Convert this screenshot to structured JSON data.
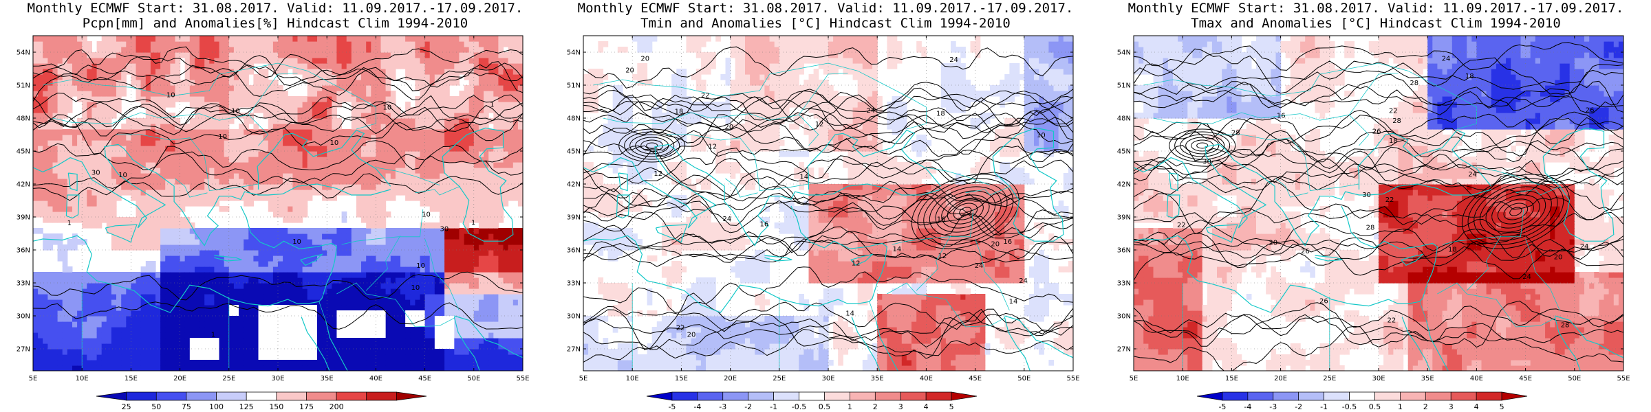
{
  "panels": [
    {
      "title_line1": "Monthly ECMWF Start: 31.08.2017. Valid: 11.09.2017.-17.09.2017.",
      "title_line2": "Pcpn[mm] and Anomalies[%] Hindcast Clim 1994-2010",
      "colorbar_labels": [
        "25",
        "50",
        "75",
        "100",
        "125",
        "150",
        "175",
        "200"
      ],
      "colorbar_colors": [
        "#0a0ab4",
        "#1e28dc",
        "#4650f0",
        "#8c96f5",
        "#c8cdfa",
        "#ffffff",
        "#fac8c8",
        "#f08c8c",
        "#e64646",
        "#c81e1e",
        "#a00000"
      ],
      "field": "precip",
      "contour_labels": [
        "30",
        "10",
        "10",
        "10",
        "10",
        "10",
        "1",
        "10",
        "1",
        "30",
        "1",
        "1",
        "10",
        "10",
        "10",
        "10"
      ]
    },
    {
      "title_line1": "Monthly ECMWF Start: 31.08.2017. Valid: 11.09.2017.-17.09.2017.",
      "title_line2": "Tmin and Anomalies [°C] Hindcast Clim 1994-2010",
      "colorbar_labels": [
        "-5",
        "-4",
        "-3",
        "-2",
        "-1",
        "-0.5",
        "0.5",
        "1",
        "2",
        "3",
        "4",
        "5"
      ],
      "colorbar_colors": [
        "#0000c8",
        "#2832e6",
        "#5a64f0",
        "#8c96f5",
        "#b4bef8",
        "#dce1fc",
        "#ffffff",
        "#fcdcdc",
        "#f8b4b4",
        "#f08c8c",
        "#e65a5a",
        "#d22828",
        "#b40000"
      ],
      "field": "tmin",
      "contour_labels": [
        "12",
        "12",
        "10",
        "12",
        "12",
        "14",
        "16",
        "16",
        "20",
        "20",
        "14",
        "18",
        "20",
        "24",
        "22",
        "24",
        "20",
        "14",
        "22",
        "24",
        "20",
        "12",
        "16",
        "24",
        "14",
        "18",
        "24"
      ]
    },
    {
      "title_line1": "Monthly ECMWF Start: 31.08.2017. Valid: 11.09.2017.-17.09.2017.",
      "title_line2": "Tmax and Anomalies [°C] Hindcast Clim 1994-2010",
      "colorbar_labels": [
        "-5",
        "-4",
        "-3",
        "-2",
        "-1",
        "-0.5",
        "0.5",
        "1",
        "2",
        "3",
        "4",
        "5"
      ],
      "colorbar_colors": [
        "#0000c8",
        "#2832e6",
        "#5a64f0",
        "#8c96f5",
        "#b4bef8",
        "#dce1fc",
        "#ffffff",
        "#fcdcdc",
        "#f8b4b4",
        "#f08c8c",
        "#e65a5a",
        "#d22828",
        "#b40000"
      ],
      "field": "tmax",
      "contour_labels": [
        "18",
        "16",
        "18",
        "20",
        "22",
        "22",
        "18",
        "24",
        "22",
        "24",
        "26",
        "28",
        "24",
        "20",
        "22",
        "28",
        "26",
        "30",
        "26",
        "28",
        "30",
        "28",
        "26",
        "24",
        "28"
      ]
    }
  ],
  "lat_labels": [
    "54N",
    "51N",
    "48N",
    "45N",
    "42N",
    "39N",
    "36N",
    "33N",
    "30N",
    "27N"
  ],
  "lon_labels": [
    "5E",
    "10E",
    "15E",
    "20E",
    "25E",
    "30E",
    "35E",
    "40E",
    "45E",
    "50E",
    "55E"
  ],
  "coastline_color": "#14c8c8"
}
